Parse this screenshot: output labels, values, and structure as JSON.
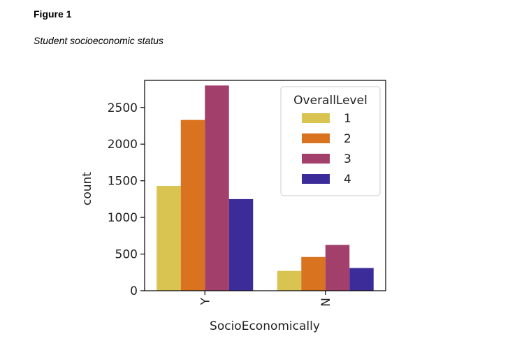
{
  "figure": {
    "label": "Figure 1",
    "caption": "Student socioeconomic status"
  },
  "chart_data": {
    "type": "bar",
    "title": "",
    "xlabel": "SocioEconomically",
    "ylabel": "count",
    "categories": [
      "Y",
      "N"
    ],
    "legend_title": "OverallLevel",
    "legend_position": "top-right",
    "ylim": [
      0,
      2870
    ],
    "yticks": [
      0,
      500,
      1000,
      1500,
      2000,
      2500
    ],
    "grid": false,
    "series": [
      {
        "name": "1",
        "color": "#d9c351",
        "values": [
          1430,
          270
        ]
      },
      {
        "name": "2",
        "color": "#d9731f",
        "values": [
          2330,
          460
        ]
      },
      {
        "name": "3",
        "color": "#a2406b",
        "values": [
          2800,
          625
        ]
      },
      {
        "name": "4",
        "color": "#3c2c9a",
        "values": [
          1250,
          310
        ]
      }
    ]
  }
}
